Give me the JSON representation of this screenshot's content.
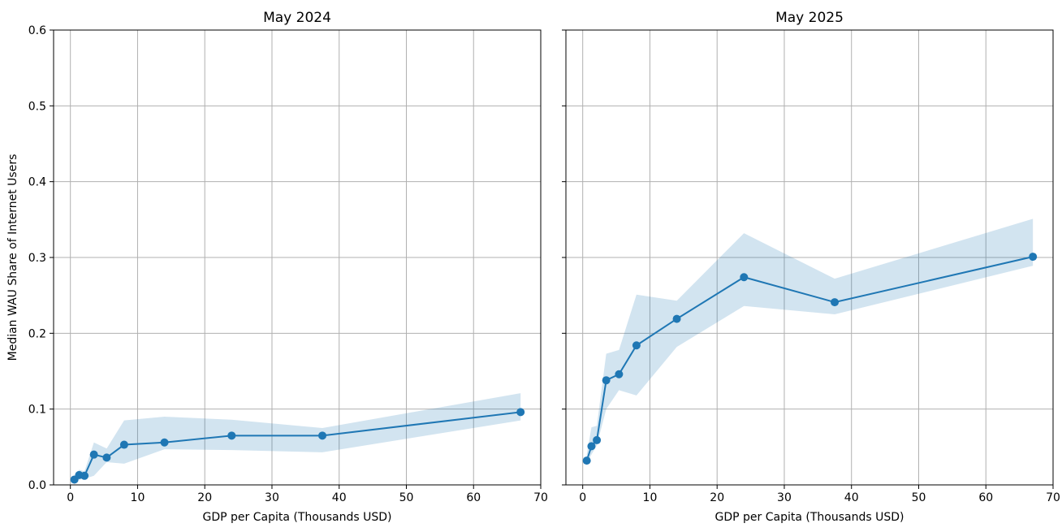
{
  "chart_data": [
    {
      "type": "line",
      "title": "May 2024",
      "xlabel": "GDP per Capita (Thousands USD)",
      "ylabel": "Median WAU Share of Internet Users",
      "xlim": [
        -2.5,
        70
      ],
      "ylim": [
        0,
        0.6
      ],
      "xticks": [
        0,
        10,
        20,
        30,
        40,
        50,
        60,
        70
      ],
      "yticks": [
        0.0,
        0.1,
        0.2,
        0.3,
        0.4,
        0.5,
        0.6
      ],
      "xtick_labels": [
        "0",
        "10",
        "20",
        "30",
        "40",
        "50",
        "60",
        "70"
      ],
      "ytick_labels": [
        "0.0",
        "0.1",
        "0.2",
        "0.3",
        "0.4",
        "0.5",
        "0.6"
      ],
      "grid": true,
      "color": "#1f77b4",
      "x": [
        0.6,
        1.3,
        2.1,
        3.5,
        5.4,
        8.0,
        14.0,
        24.0,
        37.5,
        67.0
      ],
      "y": [
        0.007,
        0.013,
        0.012,
        0.04,
        0.036,
        0.053,
        0.056,
        0.065,
        0.065,
        0.096
      ],
      "band_lower": [
        0.003,
        0.007,
        0.008,
        0.012,
        0.03,
        0.028,
        0.047,
        0.046,
        0.043,
        0.085
      ],
      "band_upper": [
        0.012,
        0.02,
        0.018,
        0.056,
        0.048,
        0.085,
        0.09,
        0.086,
        0.075,
        0.121
      ]
    },
    {
      "type": "line",
      "title": "May 2025",
      "xlabel": "GDP per Capita (Thousands USD)",
      "ylabel": "",
      "xlim": [
        -2.5,
        70
      ],
      "ylim": [
        0,
        0.6
      ],
      "xticks": [
        0,
        10,
        20,
        30,
        40,
        50,
        60,
        70
      ],
      "yticks": [
        0.0,
        0.1,
        0.2,
        0.3,
        0.4,
        0.5,
        0.6
      ],
      "xtick_labels": [
        "0",
        "10",
        "20",
        "30",
        "40",
        "50",
        "60",
        "70"
      ],
      "ytick_labels": [],
      "grid": true,
      "color": "#1f77b4",
      "x": [
        0.6,
        1.3,
        2.1,
        3.5,
        5.4,
        8.0,
        14.0,
        24.0,
        37.5,
        67.0
      ],
      "y": [
        0.032,
        0.051,
        0.059,
        0.138,
        0.146,
        0.184,
        0.219,
        0.274,
        0.241,
        0.301
      ],
      "band_lower": [
        0.028,
        0.04,
        0.052,
        0.1,
        0.125,
        0.118,
        0.182,
        0.236,
        0.225,
        0.289
      ],
      "band_upper": [
        0.04,
        0.076,
        0.078,
        0.173,
        0.178,
        0.251,
        0.243,
        0.332,
        0.272,
        0.351
      ]
    }
  ]
}
